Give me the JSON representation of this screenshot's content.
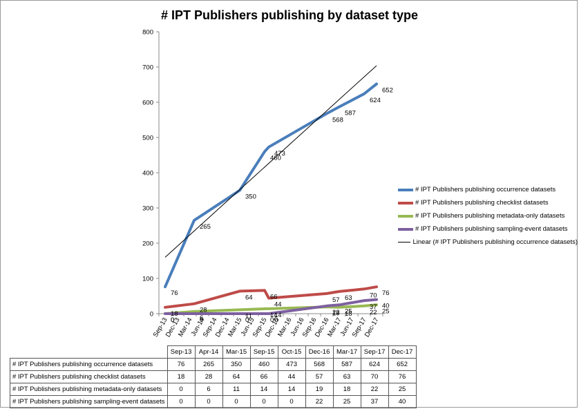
{
  "chart_data": {
    "type": "line",
    "title": "# IPT Publishers publishing by dataset type",
    "x_categories": [
      "Sep-13",
      "Dec-13",
      "Mar-14",
      "Jun-14",
      "Sep-14",
      "Dec-14",
      "Mar-15",
      "Jun-15",
      "Sep-15",
      "Dec-15",
      "Mar-16",
      "Jun-16",
      "Sep-16",
      "Dec-16",
      "Mar-17",
      "Jun-17",
      "Sep-17",
      "Dec-17"
    ],
    "table_columns": [
      "Sep-13",
      "Apr-14",
      "Mar-15",
      "Sep-15",
      "Oct-15",
      "Dec-16",
      "Mar-17",
      "Sep-17",
      "Dec-17"
    ],
    "ylim": [
      0,
      800
    ],
    "yticks": [
      "0",
      "100",
      "200",
      "300",
      "400",
      "500",
      "600",
      "700",
      "800"
    ],
    "grid": false,
    "legend_position": "right",
    "series": [
      {
        "name": "# IPT Publishers publishing occurrence datasets",
        "color": "#4a7ebb",
        "values": [
          76,
          265,
          350,
          460,
          473,
          568,
          587,
          624,
          652
        ],
        "labels": [
          "76",
          "265",
          "350",
          "460",
          "473",
          "568",
          "587",
          "624",
          "652"
        ]
      },
      {
        "name": "# IPT Publishers publishing checklist datasets",
        "color": "#be4b48",
        "values": [
          18,
          28,
          64,
          66,
          44,
          57,
          63,
          70,
          76
        ],
        "labels": [
          "18",
          "28",
          "64",
          "66",
          "44",
          "57",
          "63",
          "70",
          "76"
        ]
      },
      {
        "name": "# IPT Publishers publishing metadata-only datasets",
        "color": "#98b954",
        "values": [
          0,
          6,
          11,
          14,
          14,
          19,
          18,
          22,
          25
        ],
        "labels": [
          "0",
          "6",
          "11",
          "14",
          "14",
          "19",
          "18",
          "22",
          "25"
        ]
      },
      {
        "name": "# IPT Publishers publishing sampling-event datasets",
        "color": "#7d60a0",
        "values": [
          0,
          0,
          0,
          0,
          0,
          22,
          25,
          37,
          40
        ],
        "labels": [
          "0",
          "0",
          "0",
          "0",
          "0",
          "22",
          "25",
          "37",
          "40"
        ]
      }
    ],
    "trendline": {
      "name": "Linear (# IPT Publishers publishing occurrence datasets)",
      "color": "#000000",
      "start": 160,
      "end": 704
    }
  }
}
